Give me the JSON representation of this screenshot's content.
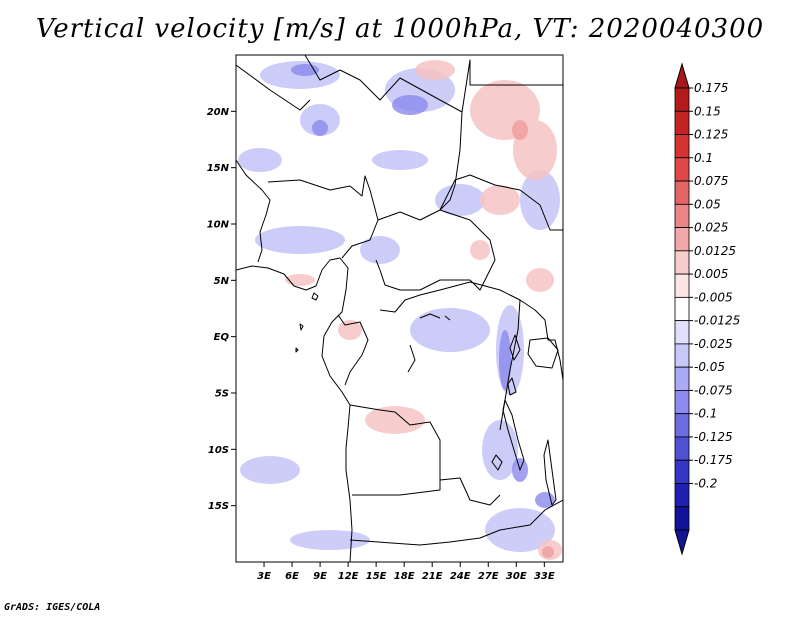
{
  "title": "Vertical velocity [m/s] at 1000hPa, VT: 2020040300",
  "footer": "GrADS: IGES/COLA",
  "map": {
    "region": "Central Africa",
    "lat_labels": [
      "20N",
      "15N",
      "10N",
      "5N",
      "EQ",
      "5S",
      "10S",
      "15S"
    ],
    "lat_values": [
      20,
      15,
      10,
      5,
      0,
      -5,
      -10,
      -15
    ],
    "lon_labels": [
      "3E",
      "6E",
      "9E",
      "12E",
      "15E",
      "18E",
      "21E",
      "24E",
      "27E",
      "30E",
      "33E"
    ],
    "lon_values": [
      3,
      6,
      9,
      12,
      15,
      18,
      21,
      24,
      27,
      30,
      33
    ],
    "lat_range": [
      -20,
      25
    ],
    "lon_range": [
      0,
      35
    ]
  },
  "colorbar": {
    "labels": [
      "0.175",
      "0.15",
      "0.125",
      "0.1",
      "0.075",
      "0.05",
      "0.025",
      "0.0125",
      "0.005",
      "-0.005",
      "-0.0125",
      "-0.025",
      "-0.05",
      "-0.075",
      "-0.1",
      "-0.125",
      "-0.175",
      "-0.2"
    ],
    "colors": [
      "#b31a1a",
      "#c42323",
      "#d53333",
      "#e04848",
      "#e46565",
      "#ec8585",
      "#f2a8a8",
      "#f9cccc",
      "#fde5e5",
      "#ffffff",
      "#e0e0fd",
      "#c8c8fb",
      "#aaaaf6",
      "#8c8cf0",
      "#6b6be2",
      "#5050d4",
      "#3636c6",
      "#2020b0",
      "#12129a"
    ],
    "top_arrow_color": "#a81818",
    "bottom_arrow_color": "#141498"
  }
}
